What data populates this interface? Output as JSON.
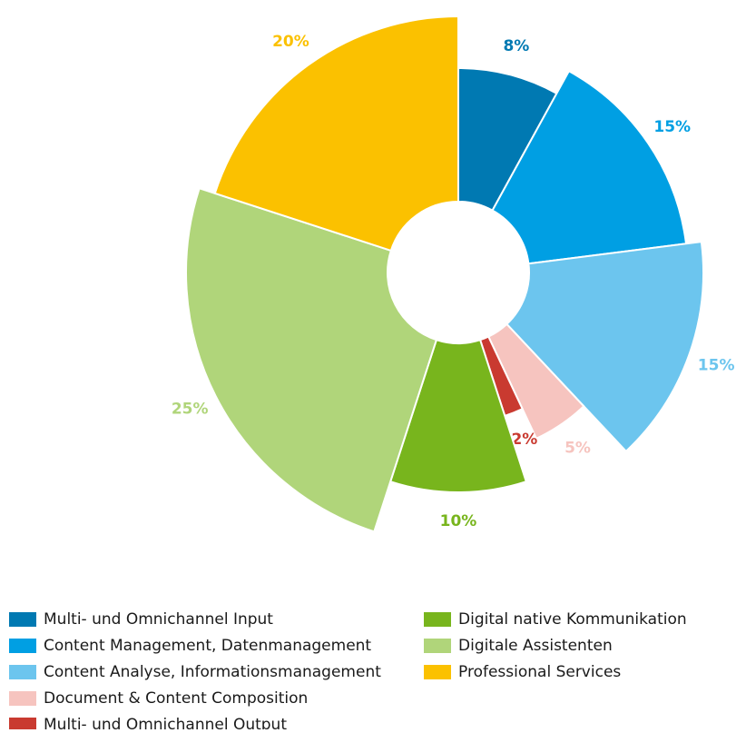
{
  "chart_data": {
    "type": "rose",
    "categories": [
      "Multi- und Omnichannel Input",
      "Content Management, Datenmanagement",
      "Content Analyse, Informationsmanagement",
      "Document & Content Composition",
      "Multi- und Omnichannel Output",
      "Digital native Kommunikation",
      "Digitale Assistenten",
      "Professional Services"
    ],
    "values": [
      8,
      15,
      15,
      5,
      2,
      10,
      25,
      20
    ],
    "value_labels": [
      "8%",
      "15%",
      "15%",
      "5%",
      "2%",
      "10%",
      "25%",
      "20%"
    ],
    "colors": [
      "#0079b2",
      "#009fe3",
      "#6cc5ee",
      "#f6c4bf",
      "#c93a30",
      "#78b51d",
      "#b0d57a",
      "#fbc100"
    ]
  }
}
